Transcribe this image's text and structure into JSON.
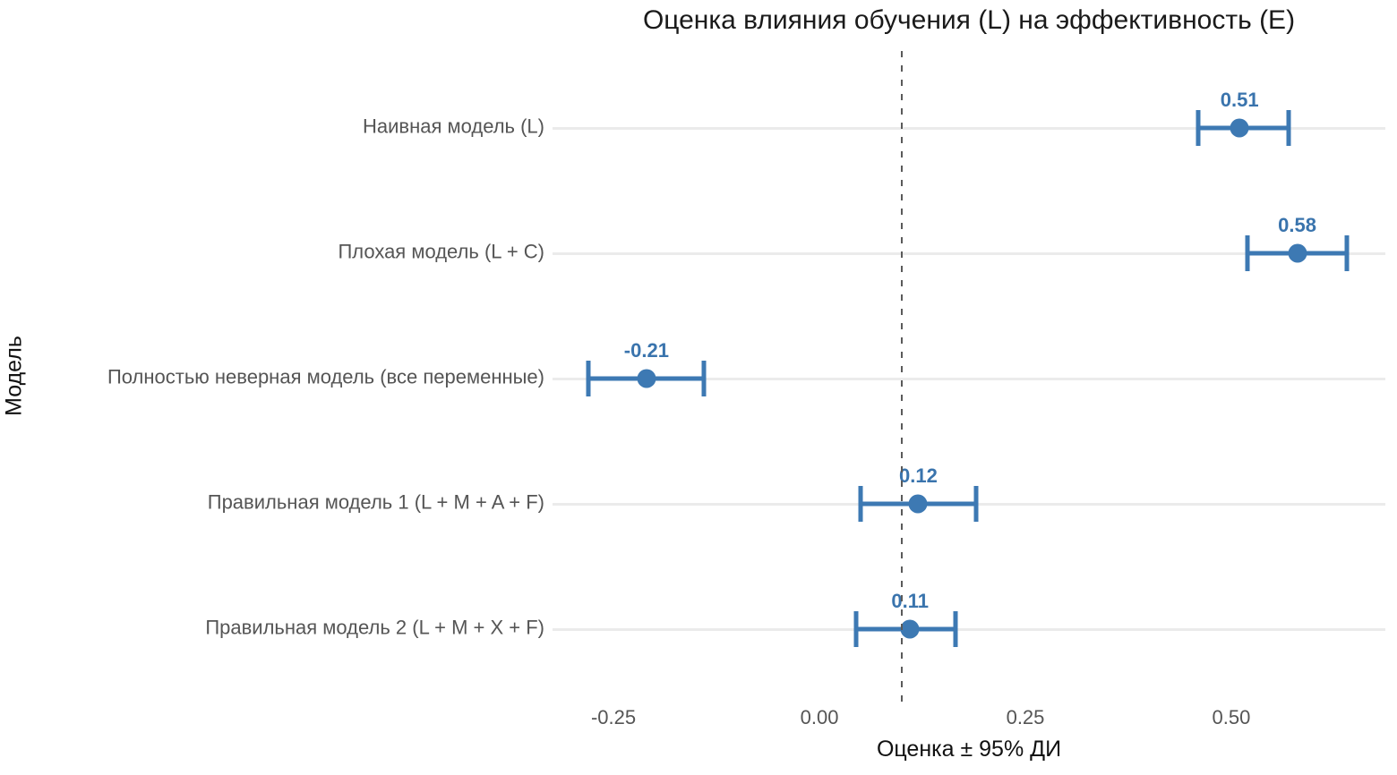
{
  "chart_data": {
    "type": "scatter",
    "subtype": "forest-plot-errorbars",
    "title": "Оценка влияния обучения (L) на эффективность (E)",
    "xlabel": "Оценка ± 95% ДИ",
    "ylabel": "Модель",
    "x_ticks": [
      -0.25,
      0.0,
      0.25,
      0.5
    ],
    "x_tick_labels": [
      "-0.25",
      "0.00",
      "0.25",
      "0.50"
    ],
    "xlim": [
      -0.324,
      0.687
    ],
    "grid": "horizontal-major-only",
    "legend": "none",
    "reference_line": {
      "x": 0.1,
      "style": "dashed",
      "color": "#5a5a5a"
    },
    "accent_color": "#3d79b3",
    "value_label_color": "#3a74ad",
    "grid_color": "#ebebeb",
    "rows": [
      {
        "label": "Наивная модель (L)",
        "estimate": 0.51,
        "ci_low": 0.46,
        "ci_high": 0.57,
        "value_label": "0.51"
      },
      {
        "label": "Плохая модель (L + C)",
        "estimate": 0.58,
        "ci_low": 0.52,
        "ci_high": 0.64,
        "value_label": "0.58"
      },
      {
        "label": "Полностью неверная модель (все переменные)",
        "estimate": -0.21,
        "ci_low": -0.28,
        "ci_high": -0.14,
        "value_label": "-0.21"
      },
      {
        "label": "Правильная модель 1 (L + M + A + F)",
        "estimate": 0.12,
        "ci_low": 0.05,
        "ci_high": 0.19,
        "value_label": "0.12"
      },
      {
        "label": "Правильная модель 2 (L + M + X + F)",
        "estimate": 0.11,
        "ci_low": 0.045,
        "ci_high": 0.165,
        "value_label": "0.11"
      }
    ]
  }
}
